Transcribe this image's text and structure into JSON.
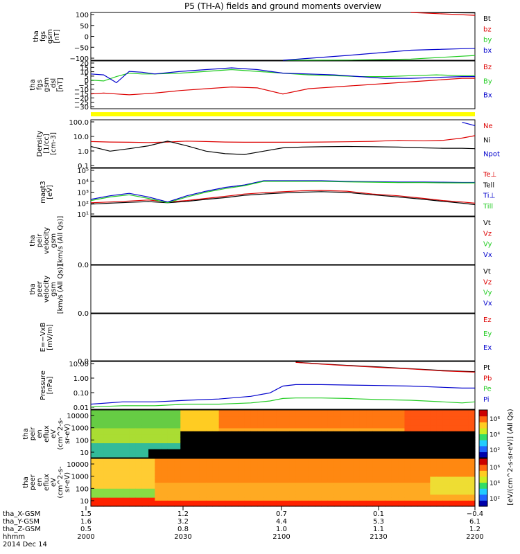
{
  "title": "P5 (TH-A) fields and ground moments overview",
  "colors": {
    "black": "#000000",
    "red": "#dd0000",
    "green": "#22cc22",
    "blue": "#0000cc",
    "yellow": "#ffff00"
  },
  "chart_data": [
    {
      "type": "line",
      "panel": "fgs_gsm_nt",
      "ylabel_lines": [
        "tha",
        "fgs",
        "gsm",
        "[nT]"
      ],
      "ylim": [
        -100,
        100
      ],
      "yticks": [
        "100",
        "50",
        "0",
        "−50",
        "−100"
      ],
      "x": [
        0,
        10,
        20,
        30,
        40,
        50,
        60
      ],
      "series": [
        {
          "name": "Bt",
          "values": [
            null,
            null,
            null,
            null,
            null,
            102,
            98
          ]
        },
        {
          "name": "bz",
          "values": [
            null,
            null,
            null,
            null,
            null,
            100,
            88
          ]
        },
        {
          "name": "by",
          "values": [
            null,
            null,
            null,
            -100,
            -99,
            -95,
            -80
          ]
        },
        {
          "name": "bx",
          "values": [
            null,
            null,
            null,
            -100,
            -80,
            -58,
            -50
          ]
        }
      ],
      "legend": [
        {
          "label": "Bt",
          "color": "black"
        },
        {
          "label": "bz",
          "color": "red"
        },
        {
          "label": "by",
          "color": "green"
        },
        {
          "label": "bx",
          "color": "blue"
        }
      ]
    },
    {
      "type": "line",
      "panel": "fgs_gsm_dsl",
      "ylabel_lines": [
        "tha",
        "fgs",
        "gsm",
        "_dsl",
        "[nT]"
      ],
      "ylim": [
        -35,
        20
      ],
      "yticks": [
        "20",
        "15",
        "10",
        "5",
        "0",
        "−5",
        "−10",
        "−15",
        "−20",
        "−25",
        "−30"
      ],
      "x": [
        0,
        2,
        4,
        6,
        8,
        10,
        14,
        18,
        22,
        26,
        30,
        34,
        38,
        42,
        46,
        50,
        54,
        58,
        60
      ],
      "series": [
        {
          "name": "Bz",
          "values": [
            -18,
            -17,
            -18,
            -19,
            -18,
            -17,
            -14,
            -12,
            -10,
            -11,
            -18,
            -12,
            -10,
            -8,
            -6,
            -4,
            -2,
            0,
            0
          ]
        },
        {
          "name": "By",
          "values": [
            -2,
            -3,
            2,
            6,
            5,
            5,
            6,
            8,
            10,
            8,
            6,
            4,
            3,
            2,
            2,
            3,
            4,
            3,
            3
          ]
        },
        {
          "name": "Bx",
          "values": [
            5,
            4,
            -5,
            8,
            7,
            5,
            8,
            10,
            12,
            10,
            6,
            5,
            4,
            2,
            0,
            0,
            1,
            2,
            2
          ]
        }
      ],
      "legend": [
        {
          "label": "Bz",
          "color": "red"
        },
        {
          "label": "By",
          "color": "green"
        },
        {
          "label": "Bx",
          "color": "blue"
        }
      ]
    },
    {
      "type": "line",
      "panel": "density",
      "ylabel_lines": [
        "Density",
        "[1/cc]",
        "[cm-3]"
      ],
      "log": true,
      "ylim": [
        0.01,
        200
      ],
      "yticks": [
        "100.0",
        "10.0",
        "1.0",
        "0.1"
      ],
      "x": [
        0,
        3,
        6,
        9,
        12,
        15,
        18,
        21,
        24,
        27,
        30,
        33,
        36,
        40,
        44,
        48,
        52,
        55,
        58,
        60
      ],
      "series": [
        {
          "name": "Ne",
          "values": [
            2.2,
            2.0,
            1.9,
            1.8,
            2.0,
            2.4,
            2.2,
            2.0,
            1.9,
            1.9,
            1.9,
            1.9,
            2.0,
            2.1,
            2.3,
            2.8,
            2.6,
            2.8,
            4.5,
            7.5
          ]
        },
        {
          "name": "Ni",
          "values": [
            0.8,
            0.3,
            0.5,
            0.9,
            2.4,
            0.9,
            0.3,
            0.18,
            0.15,
            0.3,
            0.6,
            0.7,
            0.75,
            0.8,
            0.75,
            0.7,
            0.6,
            0.55,
            0.55,
            0.5
          ]
        },
        {
          "name": "Vx",
          "values": [
            null,
            null,
            null,
            null,
            null,
            null,
            null,
            null,
            null,
            null,
            null,
            null,
            null,
            null,
            null,
            null,
            null,
            null,
            120,
            60
          ]
        }
      ],
      "legend": [
        {
          "label": "Ne",
          "color": "red"
        },
        {
          "label": "Ni",
          "color": "black"
        },
        {
          "label": "Npot",
          "color": "blue"
        }
      ]
    },
    {
      "type": "line",
      "panel": "temperature",
      "ylabel_lines": [
        "magt3",
        "[eV]"
      ],
      "log": true,
      "ylim": [
        10,
        100000
      ],
      "yticks": [
        "10⁵",
        "10⁴",
        "10³",
        "10²",
        "10¹"
      ],
      "x": [
        0,
        3,
        6,
        9,
        12,
        15,
        18,
        21,
        24,
        27,
        30,
        33,
        36,
        40,
        44,
        48,
        52,
        55,
        58,
        60
      ],
      "series": [
        {
          "name": "Te⊥",
          "values": [
            130,
            150,
            180,
            220,
            150,
            200,
            300,
            450,
            700,
            900,
            1100,
            1300,
            1400,
            1200,
            700,
            500,
            300,
            200,
            150,
            120
          ]
        },
        {
          "name": "Tell",
          "values": [
            100,
            120,
            140,
            160,
            130,
            170,
            250,
            350,
            550,
            700,
            850,
            1000,
            1100,
            950,
            600,
            400,
            250,
            170,
            120,
            90
          ]
        },
        {
          "name": "Ti⊥",
          "values": [
            250,
            500,
            800,
            400,
            150,
            500,
            1200,
            2500,
            4000,
            9000,
            9000,
            9000,
            9000,
            8000,
            7500,
            7000,
            7000,
            6800,
            6500,
            6500
          ]
        },
        {
          "name": "Till",
          "values": [
            200,
            400,
            600,
            300,
            130,
            400,
            1000,
            2000,
            3500,
            8000,
            8000,
            8000,
            8000,
            7200,
            6800,
            6300,
            6300,
            6100,
            6000,
            6000
          ]
        }
      ],
      "legend": [
        {
          "label": "Te⊥",
          "color": "red"
        },
        {
          "label": "Tell",
          "color": "black"
        },
        {
          "label": "Ti⊥",
          "color": "blue"
        },
        {
          "label": "Till",
          "color": "green"
        }
      ]
    },
    {
      "type": "line",
      "panel": "peir_velocity",
      "ylabel_lines": [
        "tha",
        "peir",
        "velocity",
        "gsm",
        "[km/s (All Qs)]"
      ],
      "ylim": [
        0,
        1
      ],
      "yticks": [
        "0.0"
      ],
      "legend": [
        {
          "label": "Vt",
          "color": "black"
        },
        {
          "label": "Vz",
          "color": "red"
        },
        {
          "label": "Vy",
          "color": "green"
        },
        {
          "label": "Vx",
          "color": "blue"
        }
      ]
    },
    {
      "type": "line",
      "panel": "peer_velocity",
      "ylabel_lines": [
        "tha",
        "peer",
        "velocity",
        "gsm",
        "[km/s (All Qs)]"
      ],
      "ylim": [
        0,
        1
      ],
      "yticks": [
        "0.0"
      ],
      "legend": [
        {
          "label": "Vt",
          "color": "black"
        },
        {
          "label": "Vz",
          "color": "red"
        },
        {
          "label": "Vy",
          "color": "green"
        },
        {
          "label": "Vx",
          "color": "blue"
        }
      ]
    },
    {
      "type": "line",
      "panel": "efield",
      "ylabel_lines": [
        "E=−VxB",
        "[mV/m]"
      ],
      "ylim": [
        0,
        1
      ],
      "yticks": [
        "0.0"
      ],
      "legend": [
        {
          "label": "Ez",
          "color": "red"
        },
        {
          "label": "Ey",
          "color": "green"
        },
        {
          "label": "Ex",
          "color": "blue"
        }
      ]
    },
    {
      "type": "line",
      "panel": "pressure",
      "ylabel_lines": [
        "Pressure",
        "[nPa]"
      ],
      "log": true,
      "ylim": [
        0.008,
        40
      ],
      "yticks": [
        "10.00",
        "1.00",
        "0.10",
        "0.01"
      ],
      "x": [
        0,
        5,
        10,
        15,
        20,
        25,
        28,
        30,
        32,
        36,
        40,
        45,
        50,
        55,
        58,
        60
      ],
      "series": [
        {
          "name": "Pt",
          "values": [
            null,
            null,
            null,
            null,
            null,
            null,
            null,
            null,
            35,
            26,
            20,
            15,
            11,
            8,
            7,
            6.5
          ]
        },
        {
          "name": "Pb",
          "values": [
            null,
            null,
            null,
            null,
            null,
            null,
            null,
            null,
            34,
            25,
            19,
            14,
            10.5,
            7.5,
            6.5,
            6
          ]
        },
        {
          "name": "Pe",
          "values": [
            0.012,
            0.015,
            0.015,
            0.02,
            0.02,
            0.025,
            0.035,
            0.055,
            0.06,
            0.06,
            0.055,
            0.045,
            0.04,
            0.03,
            0.025,
            0.03
          ]
        },
        {
          "name": "Pi",
          "values": [
            0.02,
            0.03,
            0.03,
            0.04,
            0.05,
            0.08,
            0.15,
            0.5,
            0.65,
            0.65,
            0.6,
            0.55,
            0.5,
            0.4,
            0.35,
            0.35
          ]
        }
      ],
      "legend": [
        {
          "label": "Pt",
          "color": "black"
        },
        {
          "label": "Pb",
          "color": "red"
        },
        {
          "label": "Pe",
          "color": "green"
        },
        {
          "label": "Pi",
          "color": "blue"
        }
      ]
    },
    {
      "type": "heatmap",
      "panel": "peir_eflux",
      "ylabel_lines": [
        "tha",
        "peir",
        "en",
        "eflux",
        "eV",
        "(cm^2-s-",
        "sr-eV)"
      ],
      "log": true,
      "yticks": [
        "10000",
        "1000",
        "100",
        "10"
      ]
    },
    {
      "type": "heatmap",
      "panel": "peer_eflux",
      "ylabel_lines": [
        "tha",
        "peer",
        "en",
        "eflux",
        "eV",
        "(cm^2-s-",
        "sr-eV)"
      ],
      "log": true,
      "yticks": [
        "10000",
        "1000",
        "100",
        "10"
      ]
    }
  ],
  "colorbar": {
    "label": "[eV/(cm^2-s-sr-eV)] (All Qs)",
    "ticks_upper": [
      "10⁶",
      "10⁴",
      "10²"
    ],
    "ticks_lower": [
      "10⁶",
      "10⁴",
      "10²"
    ]
  },
  "xaxis": {
    "labels": [
      "tha_X-GSM",
      "tha_Y-GSM",
      "tha_Z-GSM",
      "hhmm",
      "2014 Dec 14"
    ],
    "columns": [
      [
        "1.5",
        "1.6",
        "0.5",
        "2000"
      ],
      [
        "1.2",
        "3.2",
        "0.8",
        "2030"
      ],
      [
        "0.7",
        "4.4",
        "1.0",
        "2100"
      ],
      [
        "0.1",
        "5.3",
        "1.1",
        "2130"
      ],
      [
        "−0.4",
        "6.1",
        "1.2",
        "2200"
      ]
    ]
  }
}
